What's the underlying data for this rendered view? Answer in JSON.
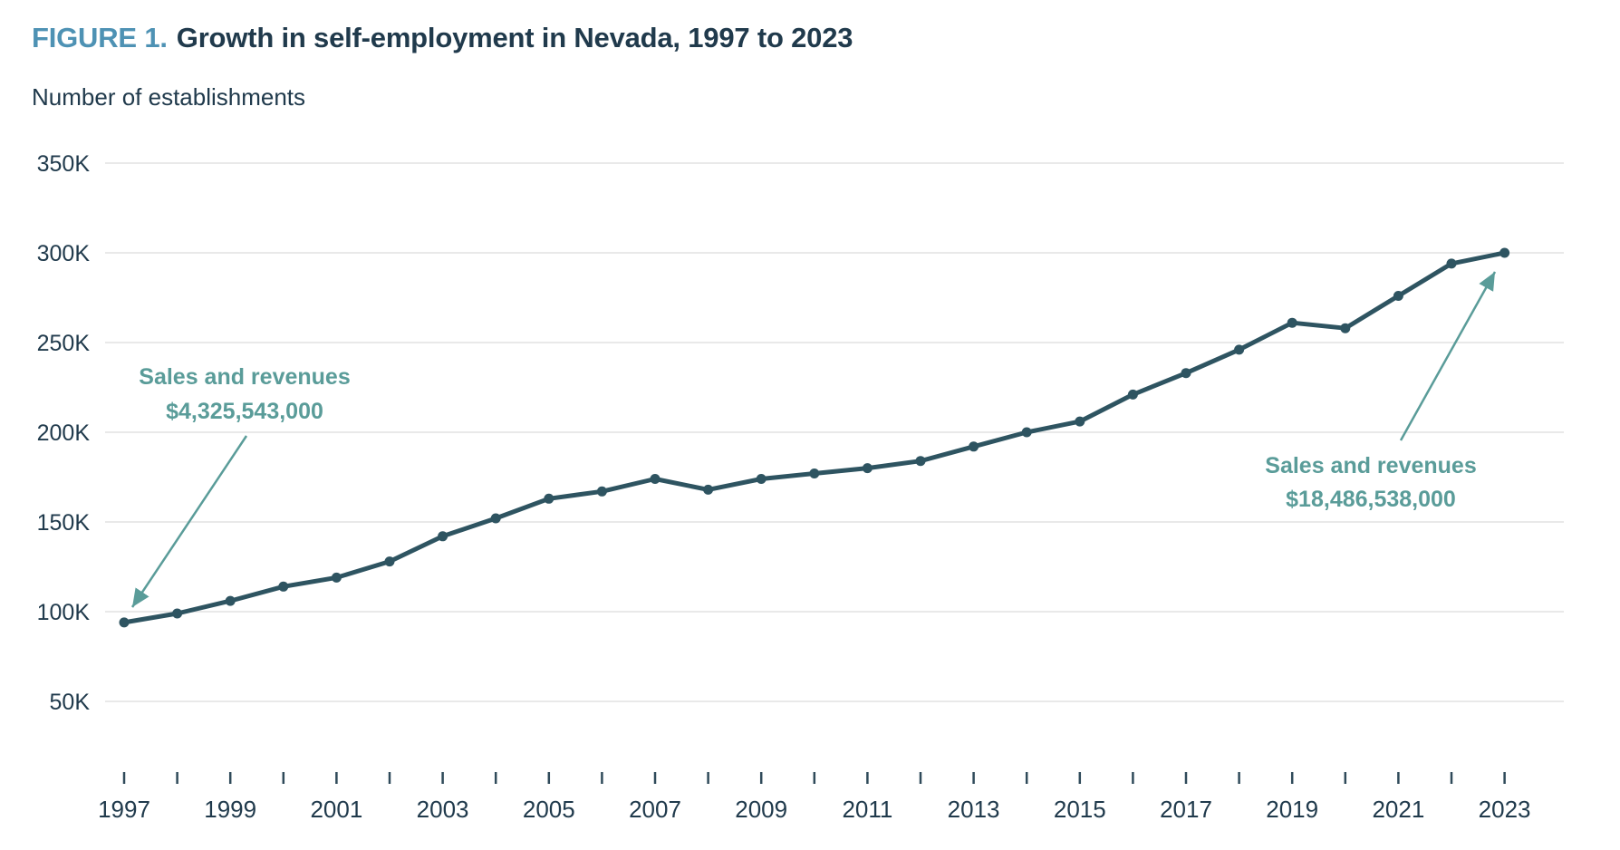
{
  "header": {
    "figure_label": "FIGURE 1.",
    "title": "Growth in self-employment in Nevada, 1997 to 2023"
  },
  "subtitle": "Number of establishments",
  "colors": {
    "accent_blue": "#4E92B4",
    "dark_navy": "#203A4C",
    "line": "#2E5461",
    "annotation_teal": "#5A9C99",
    "gridline": "#E9E9E9",
    "tick": "#2F4A5A"
  },
  "chart_data": {
    "type": "line",
    "title": "Growth in self-employment in Nevada, 1997 to 2023",
    "xlabel": "",
    "ylabel": "Number of establishments",
    "x": [
      1997,
      1998,
      1999,
      2000,
      2001,
      2002,
      2003,
      2004,
      2005,
      2006,
      2007,
      2008,
      2009,
      2010,
      2011,
      2012,
      2013,
      2014,
      2015,
      2016,
      2017,
      2018,
      2019,
      2020,
      2021,
      2022,
      2023
    ],
    "values": [
      94000,
      99000,
      106000,
      114000,
      119000,
      128000,
      142000,
      152000,
      163000,
      167000,
      174000,
      168000,
      174000,
      177000,
      180000,
      184000,
      192000,
      200000,
      206000,
      221000,
      233000,
      246000,
      261000,
      258000,
      276000,
      294000,
      300000
    ],
    "ylim": [
      0,
      350000
    ],
    "yticks": [
      {
        "value": 350000,
        "label": "350K"
      },
      {
        "value": 300000,
        "label": "300K"
      },
      {
        "value": 250000,
        "label": "250K"
      },
      {
        "value": 200000,
        "label": "200K"
      },
      {
        "value": 150000,
        "label": "150K"
      },
      {
        "value": 100000,
        "label": "100K"
      },
      {
        "value": 50000,
        "label": "50K"
      }
    ],
    "xticks_labeled": [
      "1997",
      "1999",
      "2001",
      "2003",
      "2005",
      "2007",
      "2009",
      "2011",
      "2013",
      "2015",
      "2017",
      "2019",
      "2021",
      "2023"
    ],
    "grid": "horizontal-only",
    "legend": "none",
    "annotations": [
      {
        "lines": [
          "Sales and revenues",
          "$4,325,543,000"
        ],
        "points_to_year": 1997
      },
      {
        "lines": [
          "Sales and revenues",
          "$18,486,538,000"
        ],
        "points_to_year": 2023
      }
    ]
  }
}
